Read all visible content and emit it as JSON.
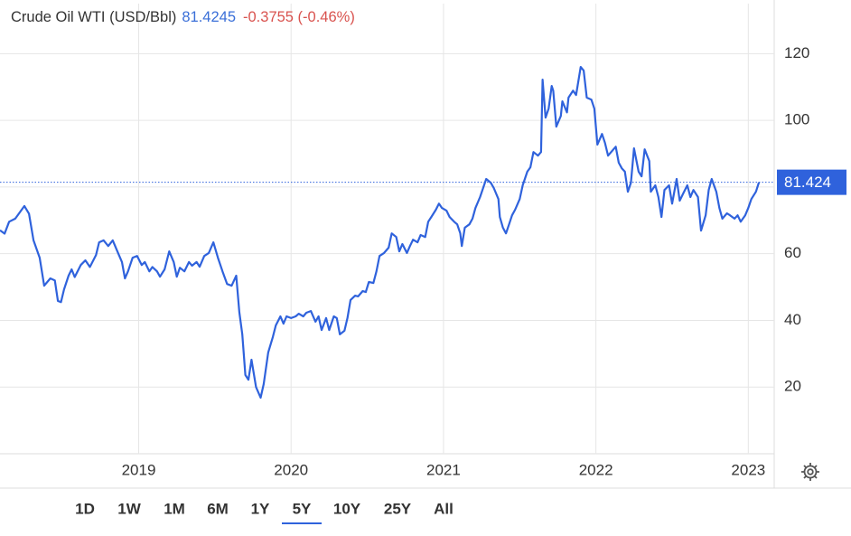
{
  "chart_data": {
    "type": "line",
    "title": "Crude Oil WTI (USD/Bbl)",
    "price": 81.4245,
    "change": "-0.3755 (-0.46%)",
    "price_tag": 81.424,
    "color": "#2f62dc",
    "grid": true,
    "xlim": [
      2018.09,
      2023.17
    ],
    "xticks": [
      2019,
      2020,
      2021,
      2022,
      2023
    ],
    "ylim": [
      0,
      135
    ],
    "yticks": [
      20,
      40,
      60,
      80,
      100,
      120
    ],
    "x": [
      2018.09,
      2018.12,
      2018.15,
      2018.19,
      2018.25,
      2018.28,
      2018.31,
      2018.35,
      2018.38,
      2018.42,
      2018.45,
      2018.47,
      2018.49,
      2018.51,
      2018.54,
      2018.56,
      2018.58,
      2018.62,
      2018.65,
      2018.68,
      2018.72,
      2018.74,
      2018.77,
      2018.8,
      2018.83,
      2018.86,
      2018.89,
      2018.91,
      2018.93,
      2018.96,
      2018.99,
      2019.02,
      2019.04,
      2019.07,
      2019.09,
      2019.12,
      2019.14,
      2019.17,
      2019.2,
      2019.23,
      2019.25,
      2019.27,
      2019.3,
      2019.33,
      2019.35,
      2019.38,
      2019.4,
      2019.43,
      2019.46,
      2019.49,
      2019.52,
      2019.55,
      2019.58,
      2019.61,
      2019.64,
      2019.66,
      2019.68,
      2019.7,
      2019.72,
      2019.74,
      2019.77,
      2019.8,
      2019.82,
      2019.85,
      2019.88,
      2019.9,
      2019.93,
      2019.95,
      2019.97,
      2020.0,
      2020.03,
      2020.05,
      2020.08,
      2020.1,
      2020.13,
      2020.16,
      2020.18,
      2020.2,
      2020.23,
      2020.25,
      2020.28,
      2020.3,
      2020.32,
      2020.35,
      2020.37,
      2020.39,
      2020.42,
      2020.44,
      2020.47,
      2020.49,
      2020.51,
      2020.54,
      2020.56,
      2020.58,
      2020.61,
      2020.64,
      2020.66,
      2020.69,
      2020.71,
      2020.73,
      2020.76,
      2020.78,
      2020.8,
      2020.83,
      2020.85,
      2020.88,
      2020.9,
      2020.92,
      2020.95,
      2020.97,
      2020.99,
      2021.02,
      2021.04,
      2021.07,
      2021.09,
      2021.11,
      2021.12,
      2021.14,
      2021.17,
      2021.19,
      2021.21,
      2021.24,
      2021.26,
      2021.28,
      2021.31,
      2021.33,
      2021.36,
      2021.37,
      2021.39,
      2021.41,
      2021.43,
      2021.45,
      2021.47,
      2021.5,
      2021.52,
      2021.55,
      2021.57,
      2021.59,
      2021.62,
      2021.64,
      2021.65,
      2021.67,
      2021.69,
      2021.71,
      2021.72,
      2021.74,
      2021.77,
      2021.78,
      2021.81,
      2021.82,
      2021.85,
      2021.87,
      2021.9,
      2021.92,
      2021.94,
      2021.97,
      2021.99,
      2022.01,
      2022.04,
      2022.06,
      2022.08,
      2022.1,
      2022.13,
      2022.15,
      2022.17,
      2022.19,
      2022.21,
      2022.23,
      2022.25,
      2022.28,
      2022.3,
      2022.32,
      2022.35,
      2022.36,
      2022.39,
      2022.41,
      2022.43,
      2022.45,
      2022.48,
      2022.5,
      2022.53,
      2022.55,
      2022.57,
      2022.6,
      2022.62,
      2022.64,
      2022.67,
      2022.69,
      2022.72,
      2022.74,
      2022.76,
      2022.79,
      2022.81,
      2022.83,
      2022.86,
      2022.88,
      2022.91,
      2022.93,
      2022.95,
      2022.98,
      2023.0,
      2023.02,
      2023.05,
      2023.07
    ],
    "values": [
      67,
      66,
      69.6,
      70.5,
      74.3,
      72,
      64,
      58.8,
      50.4,
      52.6,
      52,
      45.8,
      45.5,
      49.3,
      53.4,
      55.3,
      53,
      56.6,
      58,
      56,
      59.6,
      63.4,
      64,
      62.3,
      64,
      60.7,
      57.5,
      52.6,
      54.7,
      58.8,
      59.3,
      56.6,
      57.5,
      54.7,
      56,
      54.7,
      53.1,
      55.3,
      60.7,
      57.5,
      53.1,
      55.8,
      54.7,
      57.5,
      56.4,
      57.5,
      56.1,
      59.3,
      60.2,
      63.4,
      58.8,
      54.7,
      50.9,
      50.4,
      53.4,
      42.5,
      35.8,
      23.6,
      22.2,
      28.2,
      20,
      16.8,
      20.9,
      30.4,
      35,
      38.5,
      41.2,
      39,
      41.2,
      40.7,
      41.2,
      42,
      41.2,
      42.3,
      42.8,
      39.6,
      41.2,
      37.1,
      40.7,
      37.1,
      41.2,
      40.7,
      35.8,
      36.9,
      40.7,
      46.1,
      47.4,
      47.2,
      48.8,
      48.5,
      51.5,
      51.2,
      54.7,
      59.3,
      60.2,
      61.8,
      66.1,
      65,
      60.7,
      62.9,
      60.2,
      62.3,
      64.2,
      63.4,
      65.6,
      65,
      69.6,
      71,
      73.2,
      75,
      73.7,
      72.9,
      71,
      69.6,
      68.8,
      66.1,
      62.3,
      67.8,
      68.8,
      70.5,
      73.7,
      77,
      79.7,
      82.4,
      81.3,
      79.7,
      76.4,
      71,
      67.8,
      66.1,
      68.8,
      71.5,
      73.2,
      76.4,
      80.5,
      84.6,
      85.9,
      90.5,
      89.4,
      90.5,
      112.2,
      100.8,
      103.5,
      110.3,
      108.9,
      98.1,
      101.3,
      105.7,
      102.4,
      106.8,
      108.9,
      107.6,
      116,
      114.9,
      106.8,
      106.2,
      103.5,
      92.7,
      95.9,
      93.2,
      89.4,
      90.5,
      92.1,
      87.3,
      85.6,
      84.6,
      78.6,
      81.3,
      91.6,
      84.6,
      83.2,
      91.3,
      87.8,
      78.6,
      80.5,
      77,
      71,
      79.1,
      80.5,
      75,
      82.4,
      75.9,
      77.8,
      80.5,
      77,
      79.1,
      77,
      66.9,
      71.5,
      79.1,
      82.4,
      78.6,
      73.7,
      70.5,
      72.1,
      71.5,
      70.5,
      71.5,
      69.6,
      71.5,
      73.7,
      76.4,
      78.6,
      81.4
    ],
    "ranges": [
      "1D",
      "1W",
      "1M",
      "6M",
      "1Y",
      "5Y",
      "10Y",
      "25Y",
      "All"
    ],
    "selected_range": "5Y"
  }
}
